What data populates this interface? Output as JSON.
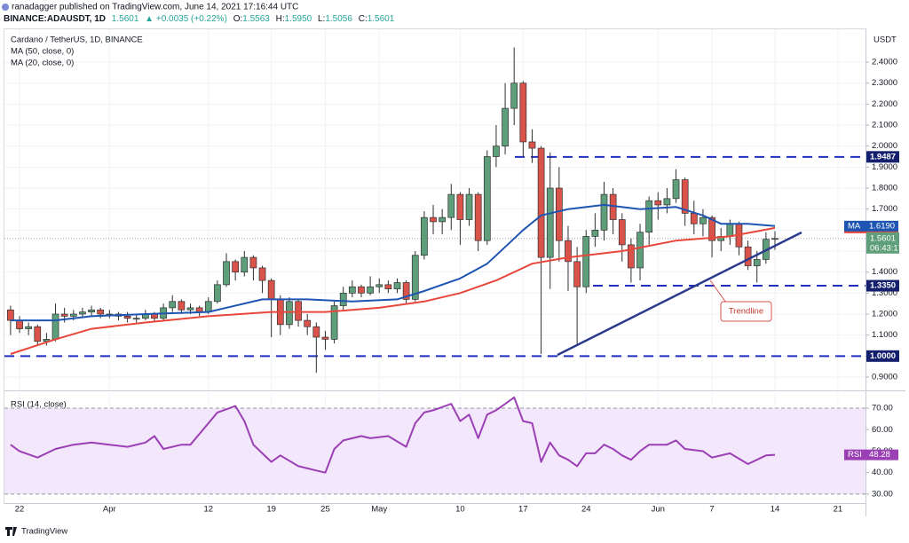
{
  "header": {
    "byline": "ranadagger published on TradingView.com, June 14, 2021 17:16:44 UTC",
    "symbol": "BINANCE:ADAUSDT, 1D",
    "last": "1.5601",
    "change": "▲ +0.0035 (+0.22%)",
    "ohlc": [
      "O:",
      "1.5563",
      "H:",
      "1.5950",
      "L:",
      "1.5056",
      "C:",
      "1.5601"
    ]
  },
  "footer": {
    "brand": "TradingView"
  },
  "chart_data": [
    {
      "type": "candlestick",
      "title": "Cardano / TetherUS, 1D, BINANCE",
      "y_unit": "USDT",
      "up_color": "#5f9e7a",
      "down_color": "#d9534a",
      "x": [
        0,
        1,
        2,
        3,
        4,
        5,
        6,
        7,
        8,
        9,
        10,
        11,
        12,
        13,
        14,
        15,
        16,
        17,
        18,
        19,
        20,
        21,
        22,
        23,
        24,
        25,
        26,
        27,
        28,
        29,
        30,
        31,
        32,
        33,
        34,
        35,
        36,
        37,
        38,
        39,
        40,
        41,
        42,
        43,
        44,
        45,
        46,
        47,
        48,
        49,
        50,
        51,
        52,
        53,
        54,
        55,
        56,
        57,
        58,
        59,
        60,
        61,
        62,
        63,
        64,
        65,
        66,
        67,
        68,
        69,
        70,
        71,
        72,
        73,
        74,
        75,
        76,
        77,
        78,
        79,
        80,
        81,
        82,
        83,
        84,
        85
      ],
      "open": [
        1.22,
        1.17,
        1.13,
        1.14,
        1.07,
        1.08,
        1.2,
        1.19,
        1.2,
        1.21,
        1.22,
        1.2,
        1.2,
        1.19,
        1.18,
        1.18,
        1.2,
        1.18,
        1.23,
        1.26,
        1.22,
        1.23,
        1.21,
        1.26,
        1.34,
        1.45,
        1.4,
        1.47,
        1.42,
        1.36,
        1.27,
        1.15,
        1.26,
        1.17,
        1.14,
        1.09,
        1.08,
        1.24,
        1.3,
        1.33,
        1.3,
        1.33,
        1.34,
        1.32,
        1.35,
        1.27,
        1.48,
        1.66,
        1.64,
        1.66,
        1.77,
        1.65,
        1.77,
        1.55,
        1.95,
        2.0,
        2.18,
        2.3,
        2.02,
        1.99,
        1.47,
        1.8,
        1.55,
        1.45,
        1.33,
        1.57,
        1.6,
        1.77,
        1.65,
        1.53,
        1.42,
        1.59,
        1.74,
        1.72,
        1.75,
        1.84,
        1.68,
        1.63,
        1.66,
        1.55,
        1.57,
        1.63,
        1.52,
        1.43,
        1.46,
        1.5563
      ],
      "high": [
        1.24,
        1.19,
        1.16,
        1.15,
        1.11,
        1.25,
        1.23,
        1.22,
        1.23,
        1.24,
        1.23,
        1.22,
        1.21,
        1.21,
        1.2,
        1.22,
        1.21,
        1.25,
        1.29,
        1.27,
        1.25,
        1.24,
        1.28,
        1.36,
        1.49,
        1.46,
        1.5,
        1.48,
        1.43,
        1.37,
        1.29,
        1.28,
        1.27,
        1.2,
        1.16,
        1.12,
        1.26,
        1.33,
        1.36,
        1.34,
        1.38,
        1.37,
        1.36,
        1.37,
        1.36,
        1.5,
        1.69,
        1.72,
        1.7,
        1.82,
        1.78,
        1.8,
        1.78,
        1.98,
        2.1,
        2.3,
        2.47,
        2.31,
        2.08,
        2.0,
        1.97,
        1.9,
        1.62,
        1.52,
        1.6,
        1.68,
        1.83,
        1.8,
        1.68,
        1.56,
        1.63,
        1.76,
        1.78,
        1.8,
        1.89,
        1.85,
        1.74,
        1.7,
        1.67,
        1.61,
        1.65,
        1.64,
        1.55,
        1.5,
        1.59,
        1.595
      ],
      "low": [
        1.1,
        1.11,
        1.1,
        1.05,
        1.05,
        1.07,
        1.16,
        1.17,
        1.18,
        1.19,
        1.18,
        1.18,
        1.17,
        1.16,
        1.16,
        1.17,
        1.16,
        1.17,
        1.21,
        1.2,
        1.2,
        1.19,
        1.2,
        1.25,
        1.33,
        1.36,
        1.38,
        1.36,
        1.3,
        1.09,
        1.1,
        1.13,
        1.14,
        1.1,
        0.92,
        1.03,
        1.06,
        1.22,
        1.28,
        1.28,
        1.29,
        1.3,
        1.3,
        1.3,
        1.25,
        1.26,
        1.46,
        1.58,
        1.58,
        1.6,
        1.53,
        1.62,
        1.5,
        1.53,
        1.9,
        1.96,
        2.1,
        1.95,
        1.92,
        1.01,
        1.32,
        1.45,
        1.31,
        1.05,
        1.3,
        1.52,
        1.55,
        1.58,
        1.45,
        1.35,
        1.36,
        1.53,
        1.65,
        1.68,
        1.73,
        1.62,
        1.58,
        1.57,
        1.47,
        1.5,
        1.53,
        1.48,
        1.41,
        1.35,
        1.44,
        1.5056
      ],
      "close": [
        1.17,
        1.13,
        1.14,
        1.07,
        1.08,
        1.2,
        1.19,
        1.2,
        1.21,
        1.22,
        1.2,
        1.2,
        1.19,
        1.18,
        1.18,
        1.2,
        1.18,
        1.23,
        1.26,
        1.22,
        1.23,
        1.21,
        1.26,
        1.34,
        1.45,
        1.4,
        1.47,
        1.42,
        1.36,
        1.27,
        1.15,
        1.26,
        1.17,
        1.14,
        1.09,
        1.08,
        1.24,
        1.3,
        1.33,
        1.3,
        1.33,
        1.34,
        1.32,
        1.35,
        1.27,
        1.48,
        1.66,
        1.64,
        1.66,
        1.77,
        1.65,
        1.77,
        1.55,
        1.95,
        2.0,
        2.18,
        2.3,
        2.02,
        1.99,
        1.47,
        1.8,
        1.55,
        1.45,
        1.33,
        1.57,
        1.6,
        1.77,
        1.65,
        1.53,
        1.42,
        1.59,
        1.74,
        1.72,
        1.75,
        1.84,
        1.68,
        1.63,
        1.66,
        1.55,
        1.57,
        1.63,
        1.52,
        1.43,
        1.46,
        1.5563,
        1.5601
      ],
      "countdown": "06:43:17",
      "series": [
        {
          "name": "MA (50, close, 0)",
          "tag": "MA",
          "color": "#e8473c",
          "last_value_label": "1.6103",
          "x": [
            0,
            5,
            9,
            15,
            22,
            29,
            35,
            41,
            46,
            50,
            54,
            58,
            62,
            68,
            74,
            80,
            85
          ],
          "values": [
            1.01,
            1.08,
            1.13,
            1.16,
            1.19,
            1.21,
            1.21,
            1.23,
            1.26,
            1.3,
            1.36,
            1.44,
            1.47,
            1.5,
            1.55,
            1.57,
            1.6103
          ]
        },
        {
          "name": "MA (20, close, 0)",
          "tag": "MA",
          "color": "#1e55b3",
          "last_value_label": "1.6190",
          "x": [
            0,
            5,
            9,
            15,
            22,
            28,
            33,
            38,
            43,
            46,
            50,
            53,
            55,
            57,
            59,
            62,
            66,
            70,
            74,
            77,
            79,
            82,
            85
          ],
          "values": [
            1.17,
            1.17,
            1.19,
            1.2,
            1.21,
            1.27,
            1.27,
            1.26,
            1.27,
            1.31,
            1.37,
            1.44,
            1.52,
            1.6,
            1.67,
            1.7,
            1.72,
            1.7,
            1.71,
            1.67,
            1.63,
            1.63,
            1.619
          ]
        }
      ],
      "levels": [
        1.9487,
        {
          "value": 1.335,
          "label": "1.3350"
        },
        {
          "value": 1.0,
          "label": "1.0000"
        }
      ],
      "annotations": [
        "Trendline"
      ],
      "xlim": [
        -0.68,
        95.07
      ],
      "xticks": [
        {
          "value": 1,
          "label": "22"
        },
        {
          "value": 11,
          "label": "Apr"
        },
        {
          "value": 22,
          "label": "12"
        },
        {
          "value": 29,
          "label": "19"
        },
        {
          "value": 35,
          "label": "25"
        },
        {
          "value": 41,
          "label": "May"
        },
        {
          "value": 50,
          "label": "10"
        },
        {
          "value": 57,
          "label": "17"
        },
        {
          "value": 64,
          "label": "24"
        },
        {
          "value": 72,
          "label": "Jun"
        },
        {
          "value": 78,
          "label": "7"
        },
        {
          "value": 85,
          "label": "14"
        },
        {
          "value": 92,
          "label": "21"
        }
      ],
      "ylim": [
        0.845,
        2.548
      ],
      "yticks": [
        {
          "value": 0.9,
          "label": "0.9000"
        },
        {
          "value": 1.0,
          "label": "1.0000"
        },
        {
          "value": 1.1,
          "label": "1.1000"
        },
        {
          "value": 1.2,
          "label": "1.2000"
        },
        {
          "value": 1.3,
          "label": "1.3000"
        },
        {
          "value": 1.4,
          "label": "1.4000"
        },
        {
          "value": 1.5,
          "label": "1.5000"
        },
        {
          "value": 1.6,
          "label": "1.6000"
        },
        {
          "value": 1.7,
          "label": "1.7000"
        },
        {
          "value": 1.8,
          "label": "1.8000"
        },
        {
          "value": 1.9,
          "label": "1.9000"
        },
        {
          "value": 2.0,
          "label": "2.0000"
        },
        {
          "value": 2.1,
          "label": "2.1000"
        },
        {
          "value": 2.2,
          "label": "2.2000"
        },
        {
          "value": 2.3,
          "label": "2.3000"
        },
        {
          "value": 2.4,
          "label": "2.4000"
        }
      ],
      "grid": true
    },
    {
      "type": "line",
      "title": "RSI (14, close)",
      "band": [
        30,
        70
      ],
      "band_color": "#f3e7fb",
      "series": [
        {
          "name": "RSI",
          "color": "#9b3fb5",
          "x": [
            0,
            1,
            3,
            5,
            7,
            9,
            11,
            13,
            15,
            16,
            17,
            19,
            20,
            22,
            23,
            25,
            26,
            27,
            29,
            30,
            32,
            34,
            35,
            36,
            37,
            39,
            40,
            42,
            44,
            45,
            46,
            47,
            49,
            50,
            51,
            52,
            53,
            54,
            55,
            56,
            57,
            58,
            59,
            60,
            61,
            62,
            63,
            64,
            65,
            66,
            67,
            68,
            69,
            70,
            71,
            73,
            74,
            75,
            77,
            78,
            80,
            82,
            83,
            84,
            85
          ],
          "values": [
            53,
            50,
            47,
            51,
            53,
            54,
            53,
            52,
            54,
            57,
            51,
            53,
            53,
            63,
            68,
            71,
            64,
            53,
            45,
            48,
            43,
            41,
            40,
            51,
            55,
            57,
            56,
            57,
            52,
            63,
            68,
            69,
            72,
            64,
            67,
            56,
            67,
            69,
            72,
            75,
            64,
            63,
            45,
            54,
            48,
            46,
            43,
            49,
            49,
            53,
            51,
            48,
            46,
            50,
            53,
            53,
            55,
            51,
            50,
            47,
            49,
            44,
            46,
            48,
            48.28
          ]
        }
      ],
      "ylim": [
        27.9,
        76.2
      ],
      "yticks": [
        {
          "value": 30,
          "label": "30.00"
        },
        {
          "value": 40,
          "label": "40.00"
        },
        {
          "value": 50,
          "label": "50.00"
        },
        {
          "value": 60,
          "label": "60.00"
        },
        {
          "value": 70,
          "label": "70.00"
        }
      ],
      "grid": true
    }
  ]
}
